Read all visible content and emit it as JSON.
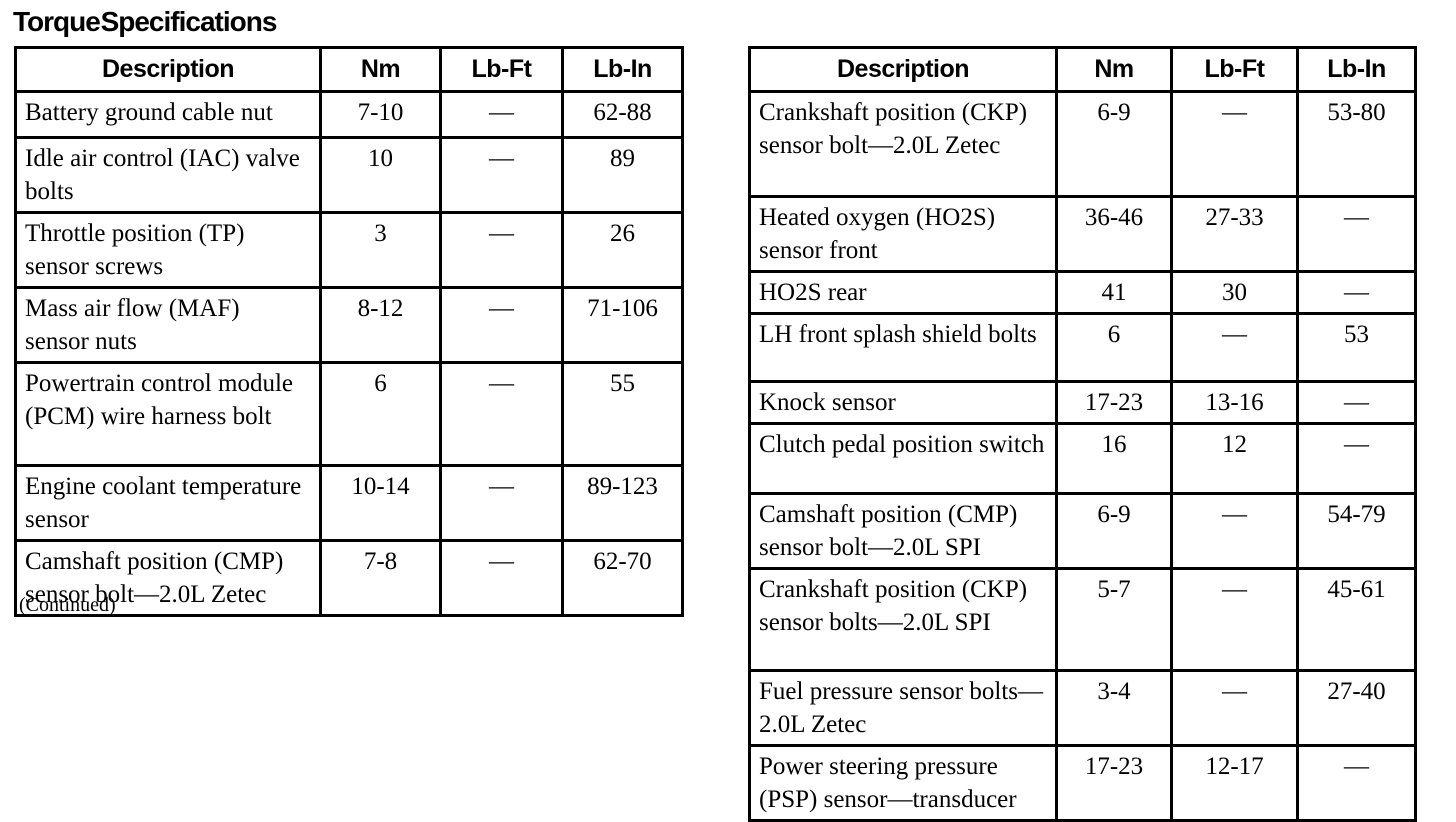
{
  "title": "Torque Specifications",
  "continued_note": "(Continued)",
  "style": {
    "text_color": "#000000",
    "background_color": "#ffffff"
  },
  "columns": [
    "Description",
    "Nm",
    "Lb-Ft",
    "Lb-In"
  ],
  "tables": [
    {
      "name": "torque-table-left",
      "rows": [
        [
          "Battery ground cable nut",
          "7-10",
          "—",
          "62-88"
        ],
        [
          "Idle air control (IAC) valve bolts",
          "10",
          "—",
          "89"
        ],
        [
          "Throttle position (TP) sensor screws",
          "3",
          "—",
          "26"
        ],
        [
          "Mass air flow (MAF) sensor nuts",
          "8-12",
          "—",
          "71-106"
        ],
        [
          "Powertrain control module (PCM) wire harness bolt",
          "6",
          "—",
          "55"
        ],
        [
          "Engine coolant temperature sensor",
          "10-14",
          "—",
          "89-123"
        ],
        [
          "Camshaft position (CMP) sensor bolt—2.0L Zetec",
          "7-8",
          "—",
          "62-70"
        ]
      ]
    },
    {
      "name": "torque-table-right",
      "rows": [
        [
          "Crankshaft position (CKP) sensor bolt—2.0L Zetec",
          "6-9",
          "—",
          "53-80"
        ],
        [
          "Heated oxygen (HO2S) sensor front",
          "36-46",
          "27-33",
          "—"
        ],
        [
          "HO2S rear",
          "41",
          "30",
          "—"
        ],
        [
          "LH front splash shield bolts",
          "6",
          "—",
          "53"
        ],
        [
          "Knock sensor",
          "17-23",
          "13-16",
          "—"
        ],
        [
          "Clutch pedal position switch",
          "16",
          "12",
          "—"
        ],
        [
          "Camshaft position (CMP) sensor bolt—2.0L SPI",
          "6-9",
          "—",
          "54-79"
        ],
        [
          "Crankshaft position (CKP) sensor bolts—2.0L SPI",
          "5-7",
          "—",
          "45-61"
        ],
        [
          "Fuel pressure sensor bolts—2.0L Zetec",
          "3-4",
          "—",
          "27-40"
        ],
        [
          "Power steering pressure (PSP) sensor—transducer",
          "17-23",
          "12-17",
          "—"
        ]
      ]
    }
  ]
}
